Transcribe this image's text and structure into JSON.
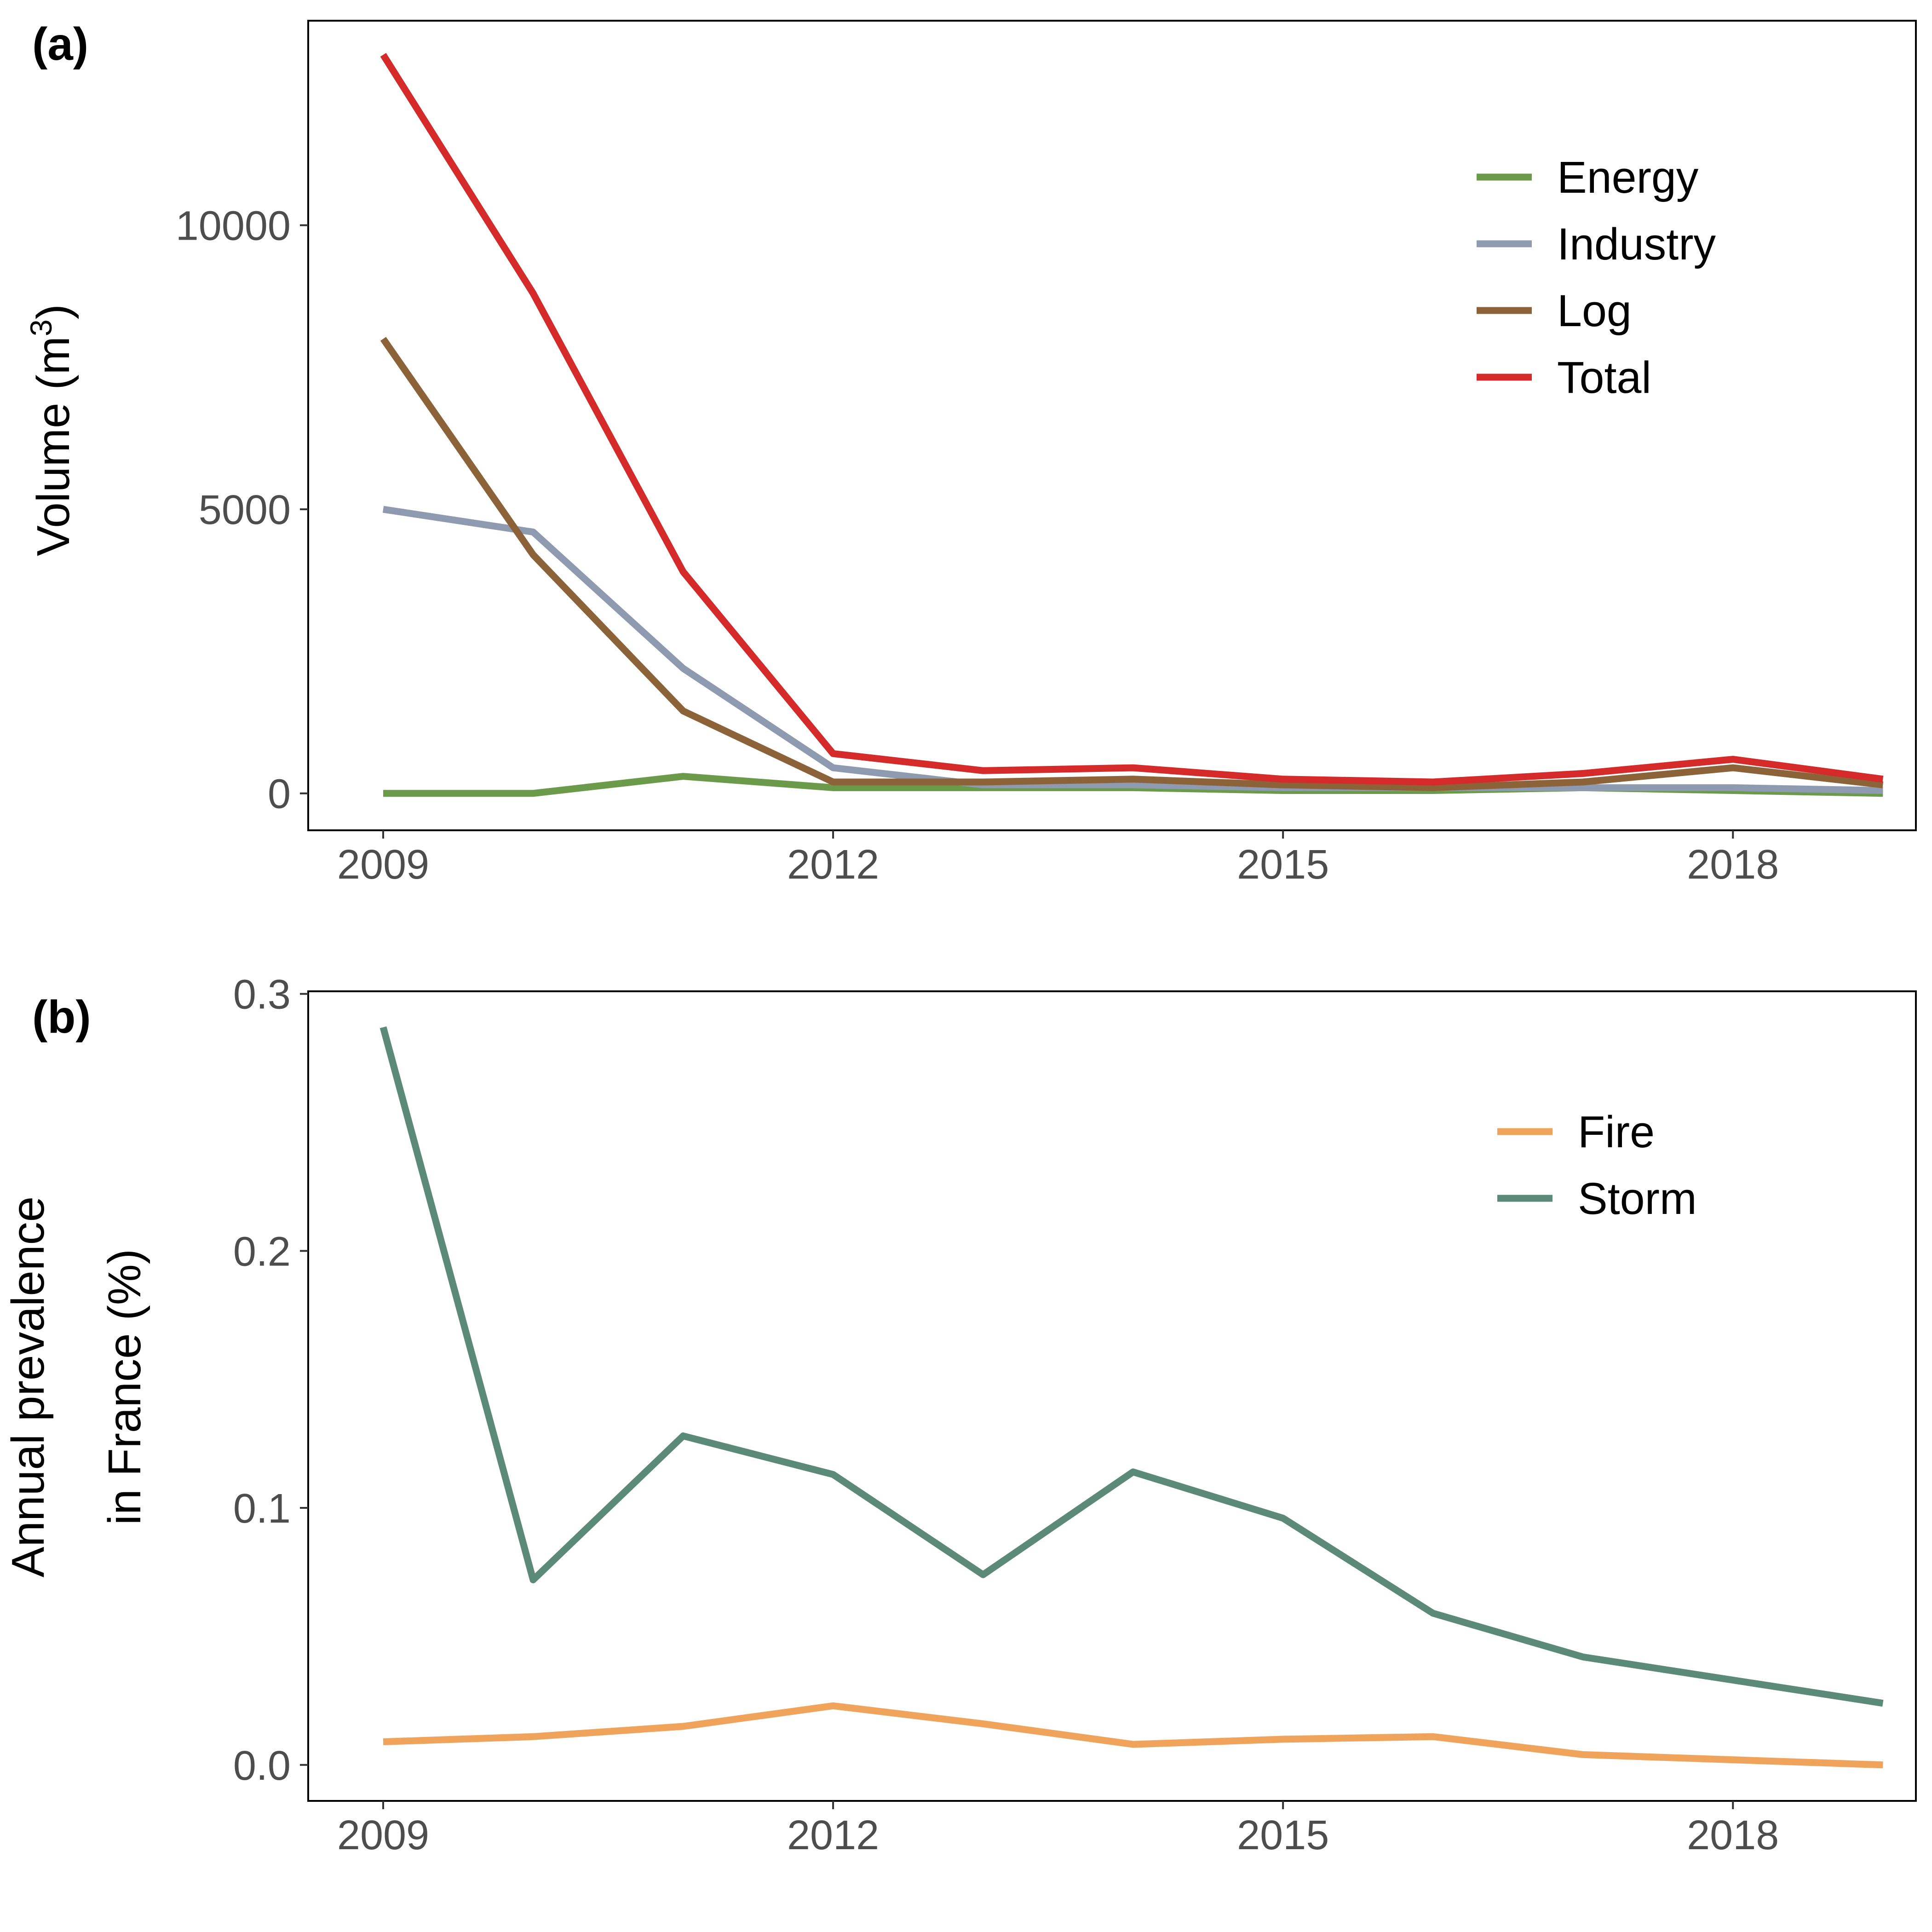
{
  "chart_data": [
    {
      "panel_tag": "(a)",
      "type": "line",
      "ylabel": "Volume (m",
      "ylabel_superscript": "3",
      "ylabel_close": ")",
      "x": [
        2009,
        2010,
        2011,
        2012,
        2013,
        2014,
        2015,
        2016,
        2017,
        2018,
        2019
      ],
      "xlim": [
        2008.5,
        2019.22
      ],
      "ylim": [
        -650,
        13600
      ],
      "xticks": [
        2009,
        2012,
        2015,
        2018
      ],
      "xtick_labels": [
        "2009",
        "2012",
        "2015",
        "2018"
      ],
      "yticks": [
        0,
        5000,
        10000
      ],
      "ytick_labels": [
        "0",
        "5000",
        "10000"
      ],
      "legend_position": "top-right",
      "grid": false,
      "series": [
        {
          "name": "Energy",
          "color": "#6a9a4a",
          "values": [
            0,
            0,
            300,
            100,
            100,
            100,
            50,
            50,
            100,
            50,
            0
          ]
        },
        {
          "name": "Industry",
          "color": "#8e9ab0",
          "values": [
            5000,
            4600,
            2200,
            450,
            150,
            150,
            100,
            100,
            100,
            100,
            50
          ]
        },
        {
          "name": "Log",
          "color": "#8c6239",
          "values": [
            8000,
            4200,
            1450,
            200,
            200,
            250,
            150,
            100,
            200,
            450,
            150
          ]
        },
        {
          "name": "Total",
          "color": "#d42a2a",
          "values": [
            13000,
            8800,
            3900,
            700,
            400,
            450,
            250,
            200,
            350,
            600,
            250
          ]
        }
      ]
    },
    {
      "panel_tag": "(b)",
      "type": "line",
      "ylabel_lines": [
        "Annual prevalence",
        "in France (%)"
      ],
      "x": [
        2009,
        2010,
        2011,
        2012,
        2013,
        2014,
        2015,
        2016,
        2017,
        2018,
        2019
      ],
      "xlim": [
        2008.5,
        2019.22
      ],
      "ylim": [
        -0.014,
        0.301
      ],
      "xticks": [
        2009,
        2012,
        2015,
        2018
      ],
      "xtick_labels": [
        "2009",
        "2012",
        "2015",
        "2018"
      ],
      "yticks": [
        0.0,
        0.1,
        0.2,
        0.3
      ],
      "ytick_labels": [
        "0.0",
        "0.1",
        "0.2",
        "0.3"
      ],
      "legend_position": "top-right",
      "grid": false,
      "series": [
        {
          "name": "Fire",
          "color": "#f0a35a",
          "values": [
            0.009,
            0.011,
            0.015,
            0.023,
            0.016,
            0.008,
            0.01,
            0.011,
            0.004,
            0.002,
            0.0
          ]
        },
        {
          "name": "Storm",
          "color": "#5b8a78",
          "values": [
            0.287,
            0.072,
            0.128,
            0.113,
            0.074,
            0.114,
            0.096,
            0.059,
            0.042,
            0.033,
            0.024
          ]
        }
      ]
    }
  ]
}
